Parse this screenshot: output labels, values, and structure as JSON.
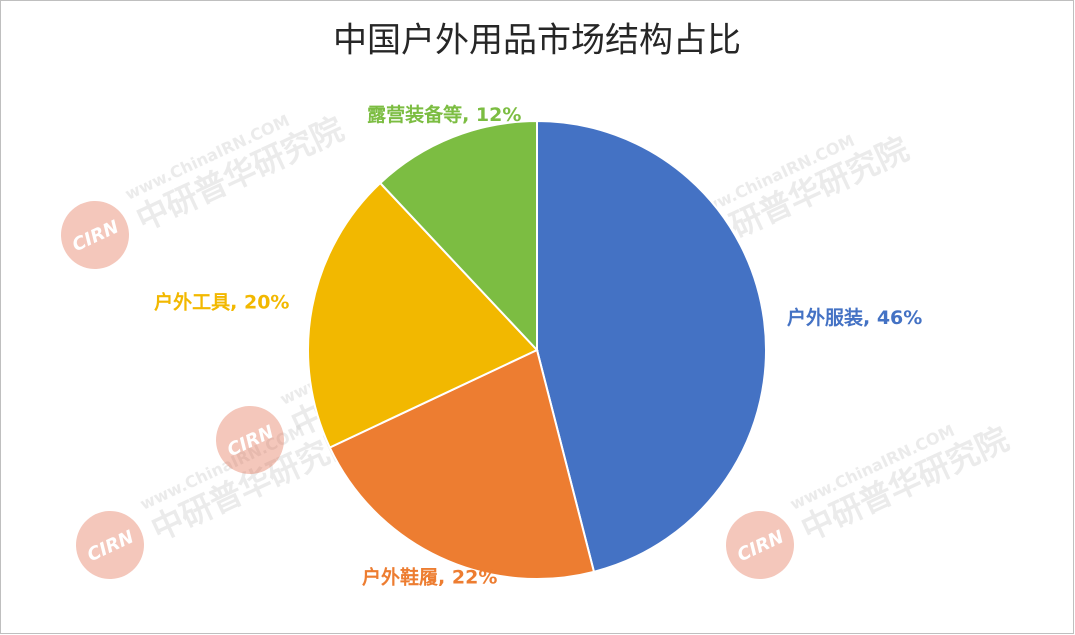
{
  "chart_data": {
    "type": "pie",
    "title": "中国户外用品市场结构占比",
    "values": [
      46,
      22,
      20,
      12
    ],
    "value_labels": [
      "户外服装, 46%",
      "户外鞋履, 22%",
      "户外工具, 20%",
      "露营装备等, 12%"
    ],
    "colors": [
      "#4472c4",
      "#ed7d31",
      "#f2b800",
      "#7cbd42"
    ],
    "watermark": {
      "url": "www.ChinaIRN.COM",
      "name": "中研普华研究院",
      "logo": "CIRN"
    }
  }
}
